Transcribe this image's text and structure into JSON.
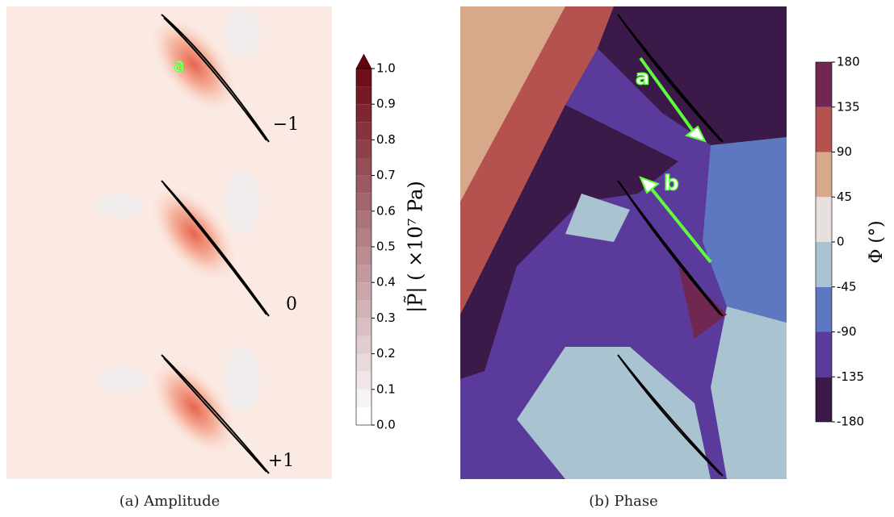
{
  "panels": [
    {
      "caption": "(a) Amplitude",
      "colorbar": {
        "label": "|P̃| ( ×10⁷ Pa)",
        "lim": [
          0,
          1
        ],
        "ticks": [
          {
            "value": 0,
            "label": "0.0"
          },
          0.1,
          0.2,
          0.3,
          0.4,
          0.5,
          0.6,
          0.7,
          0.8,
          0.9,
          {
            "value": 1,
            "label": "1.0"
          }
        ],
        "colors": [
          "#ffffff",
          "#67000d"
        ]
      },
      "annotations": [
        "a",
        "−1",
        "0",
        "+1"
      ]
    },
    {
      "caption": "(b) Phase",
      "colorbar": {
        "label": "Φ (°)",
        "lim": [
          -180,
          180
        ],
        "ticks": [
          -180,
          -135,
          -90,
          -45,
          0,
          45,
          90,
          135,
          180
        ],
        "colors": [
          "#3b1a4a",
          "#5a3a9a",
          "#5d78c0",
          "#a9c3d0",
          "#e7dede",
          "#d7a88a",
          "#b5514f",
          "#702853"
        ]
      },
      "annotations": [
        "a",
        "b"
      ]
    }
  ]
}
